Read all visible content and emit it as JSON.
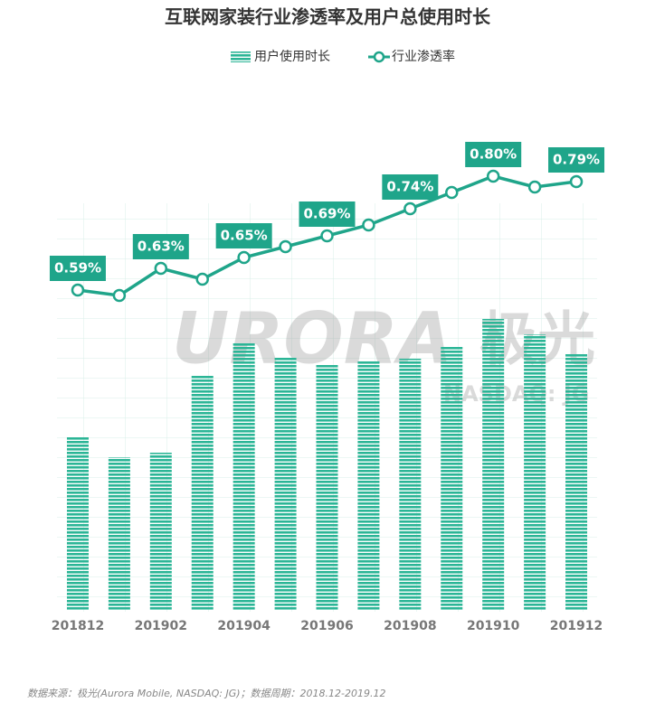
{
  "chart_data": {
    "type": "bar-line",
    "title": "互联网家装行业渗透率及用户总使用时长",
    "categories": [
      "201812",
      null,
      "201902",
      null,
      "201904",
      null,
      "201906",
      null,
      "201908",
      null,
      "201910",
      null,
      "201912"
    ],
    "series": [
      {
        "name": "用户使用时长",
        "type": "bar",
        "color": "#2bb596",
        "values": [
          192,
          169,
          174,
          260,
          295,
          279,
          272,
          275,
          278,
          291,
          322,
          305,
          283
        ]
      },
      {
        "name": "行业渗透率",
        "type": "line",
        "axis": "y2",
        "color": "#1fa58a",
        "values": [
          0.59,
          0.58,
          0.63,
          0.61,
          0.65,
          0.67,
          0.69,
          0.71,
          0.74,
          0.77,
          0.8,
          0.78,
          0.79
        ],
        "value_labels": [
          "0.59%",
          null,
          "0.63%",
          null,
          "0.65%",
          null,
          "0.69%",
          null,
          "0.74%",
          null,
          "0.80%",
          null,
          "0.79%"
        ]
      }
    ],
    "ylim": [
      0,
      600
    ],
    "y2lim": [
      0,
      1
    ],
    "legend": "top",
    "source": "数据来源：极光(Aurora Mobile, NASDAQ: JG)；数据周期：2018.12-2019.12",
    "watermark": [
      "URORA",
      "极光",
      "NASDAQ: JG"
    ]
  }
}
